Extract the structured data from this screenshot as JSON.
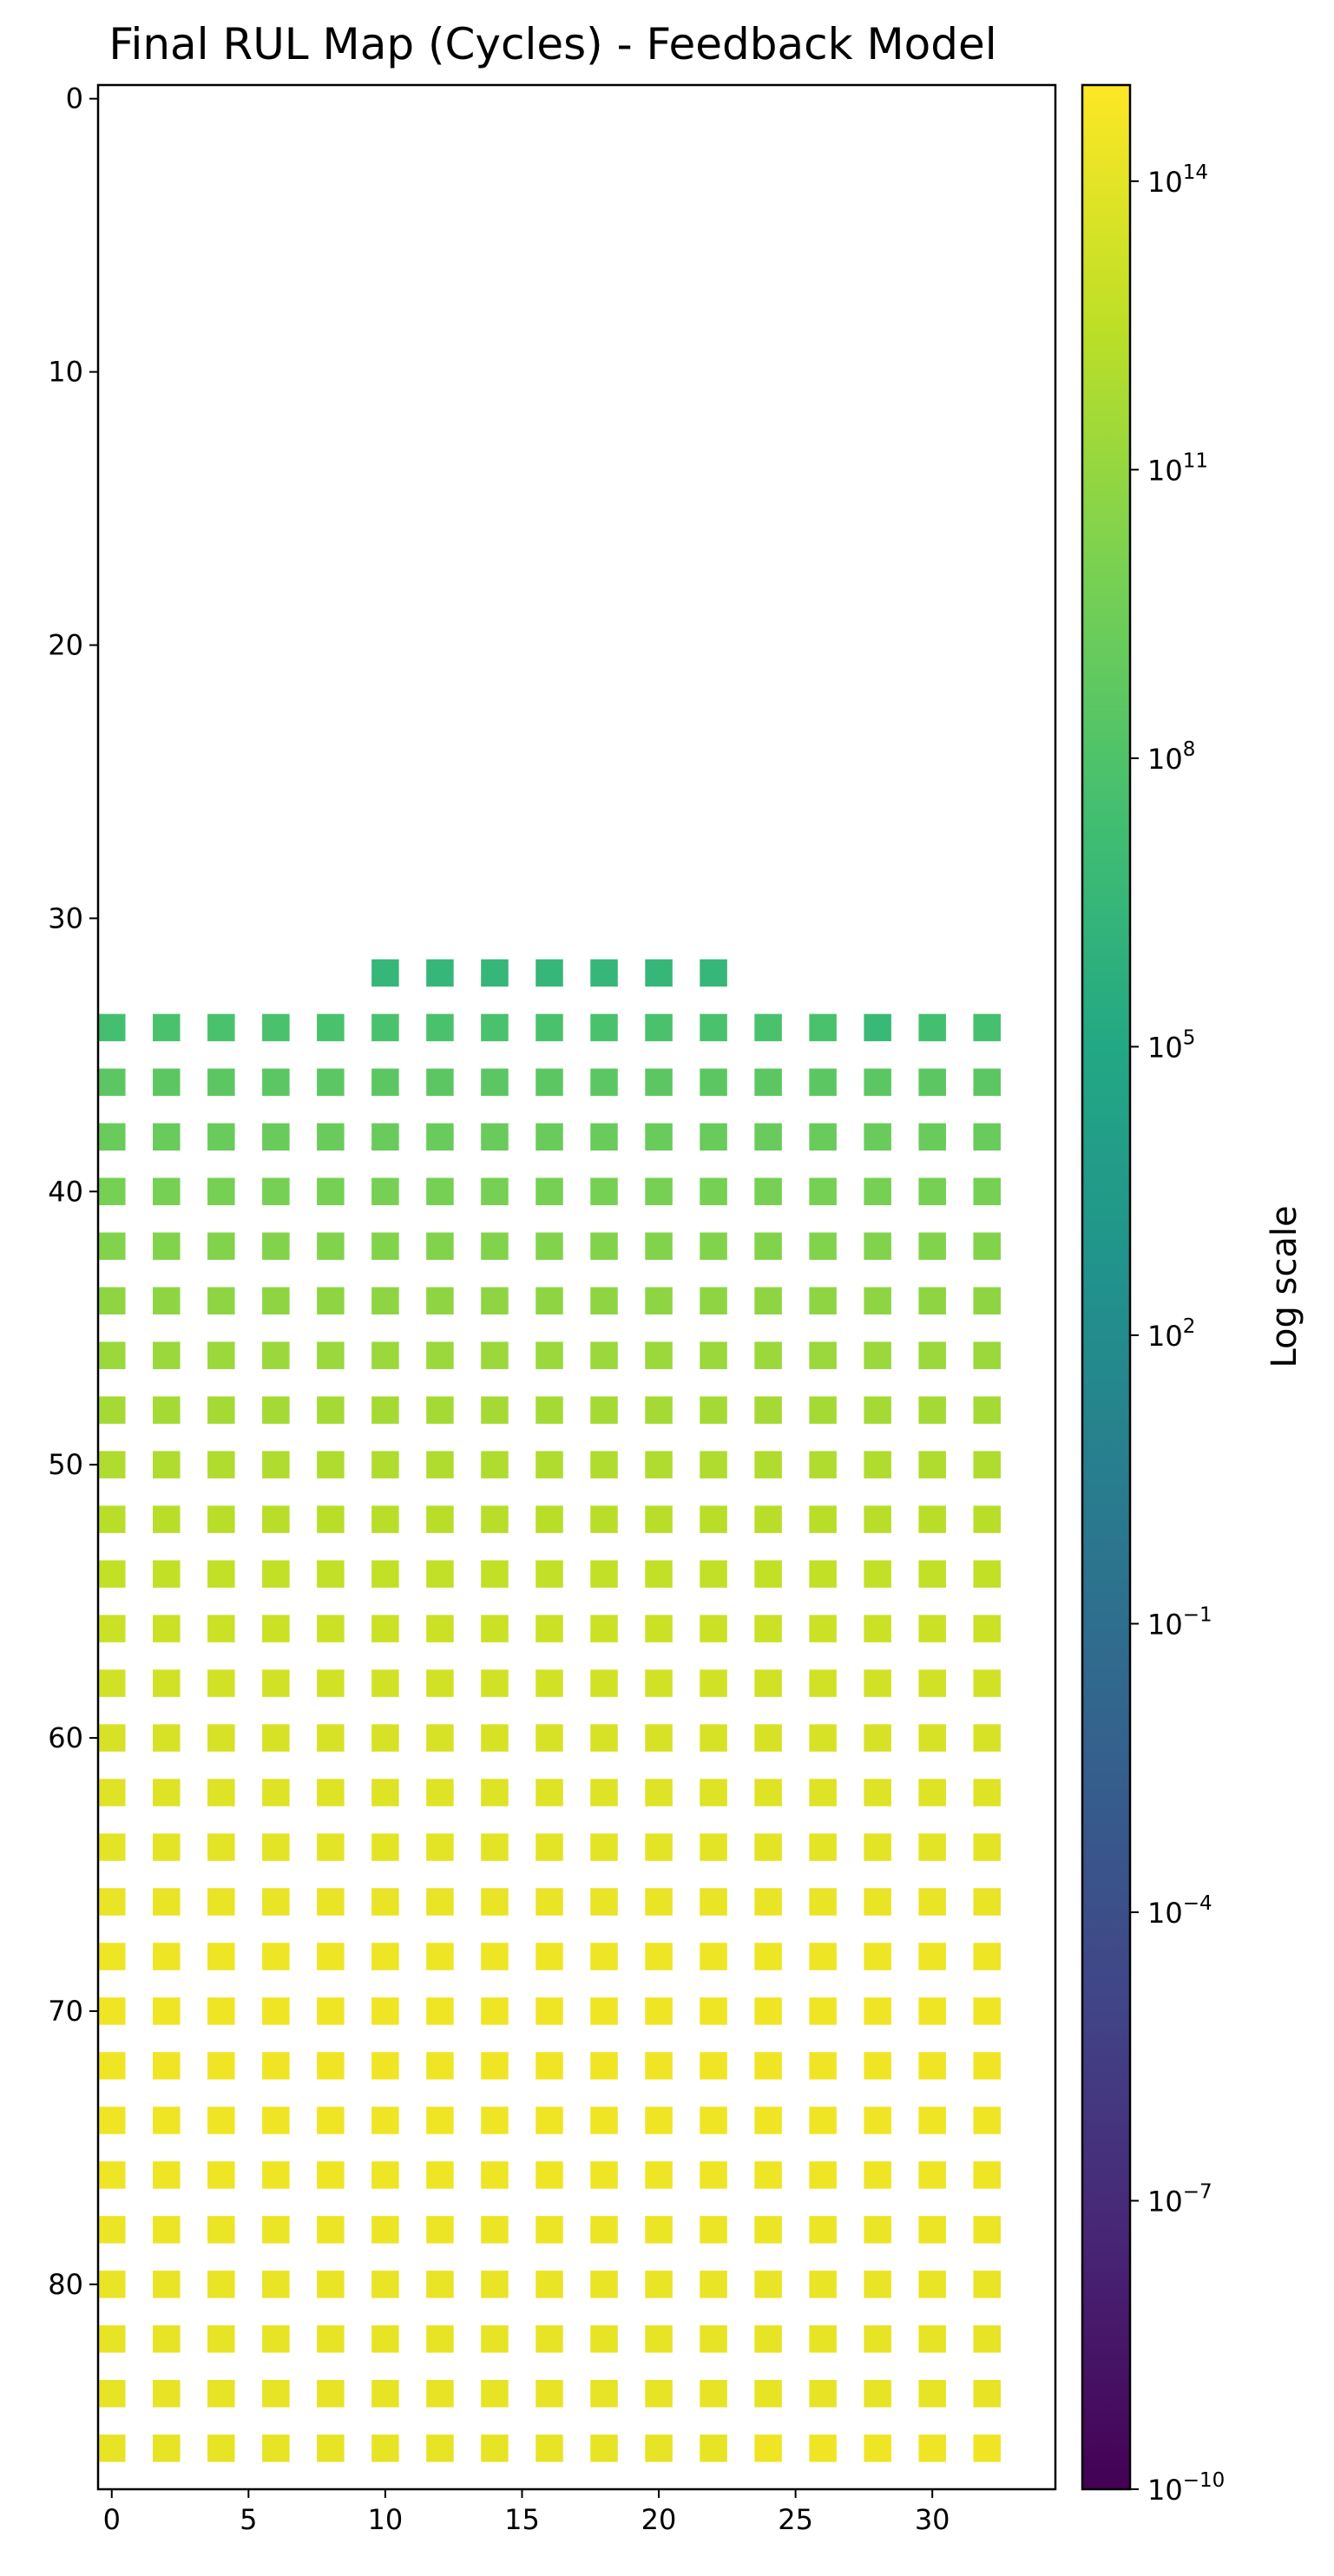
{
  "chart_data": {
    "type": "heatmap",
    "title": "Final RUL Map (Cycles) - Feedback Model",
    "xlabel": "",
    "ylabel": "",
    "x_ticks": [
      0,
      5,
      10,
      15,
      20,
      25,
      30
    ],
    "y_ticks": [
      0,
      10,
      20,
      30,
      40,
      50,
      60,
      70,
      80
    ],
    "xlim": [
      -0.5,
      34.5
    ],
    "ylim": [
      87.5,
      -0.5
    ],
    "grid": false,
    "colormap": "viridis",
    "colorbar": {
      "label": "Log scale",
      "scale": "log",
      "range": [
        1e-10,
        1000000000000000.0
      ],
      "tick_exponents": [
        -10,
        -7,
        -4,
        -1,
        2,
        5,
        8,
        11,
        14
      ],
      "tick_base": "10",
      "tick_labels": [
        "10^-10",
        "10^-7",
        "10^-4",
        "10^-1",
        "10^2",
        "10^5",
        "10^8",
        "10^11",
        "10^14"
      ]
    },
    "cells": {
      "x": [
        0,
        2,
        4,
        6,
        8,
        10,
        12,
        14,
        16,
        18,
        20,
        22,
        24,
        26,
        28,
        30,
        32
      ],
      "top_row": {
        "y": 32,
        "x": [
          10,
          12,
          14,
          16,
          18,
          20,
          22
        ],
        "log10_value": 6.5
      },
      "rows": [
        {
          "y": 34,
          "log10_value": [
            7.5,
            7.8,
            7.8,
            7.8,
            7.8,
            7.8,
            7.8,
            7.8,
            7.8,
            7.8,
            7.8,
            7.8,
            7.8,
            7.8,
            6.8,
            7.5,
            7.6
          ]
        },
        {
          "y": 36,
          "log10_value": 8.6
        },
        {
          "y": 38,
          "log10_value": 9.2
        },
        {
          "y": 40,
          "log10_value": 9.8
        },
        {
          "y": 42,
          "log10_value": 10.3
        },
        {
          "y": 44,
          "log10_value": 10.8
        },
        {
          "y": 46,
          "log10_value": 11.2
        },
        {
          "y": 48,
          "log10_value": 11.6
        },
        {
          "y": 50,
          "log10_value": 12.0
        },
        {
          "y": 52,
          "log10_value": 12.3
        },
        {
          "y": 54,
          "log10_value": 12.7
        },
        {
          "y": 56,
          "log10_value": 13.0
        },
        {
          "y": 58,
          "log10_value": 13.3
        },
        {
          "y": 60,
          "log10_value": 13.5
        },
        {
          "y": 62,
          "log10_value": 13.8
        },
        {
          "y": 64,
          "log10_value": 14.0
        },
        {
          "y": 66,
          "log10_value": 14.2
        },
        {
          "y": 68,
          "log10_value": 14.4
        },
        {
          "y": 70,
          "log10_value": 14.5
        },
        {
          "y": 72,
          "log10_value": 14.5
        },
        {
          "y": 74,
          "log10_value": 14.5
        },
        {
          "y": 76,
          "log10_value": 14.4
        },
        {
          "y": 78,
          "log10_value": 14.3
        },
        {
          "y": 80,
          "log10_value": 14.2
        },
        {
          "y": 82,
          "log10_value": 14.1
        },
        {
          "y": 84,
          "log10_value": 14.1
        },
        {
          "y": 86,
          "log10_value": [
            14.1,
            14.1,
            14.1,
            14.1,
            14.1,
            14.1,
            14.1,
            14.1,
            14.1,
            14.1,
            14.1,
            14.1,
            14.5,
            14.5,
            14.5,
            14.5,
            14.5
          ]
        }
      ]
    }
  }
}
